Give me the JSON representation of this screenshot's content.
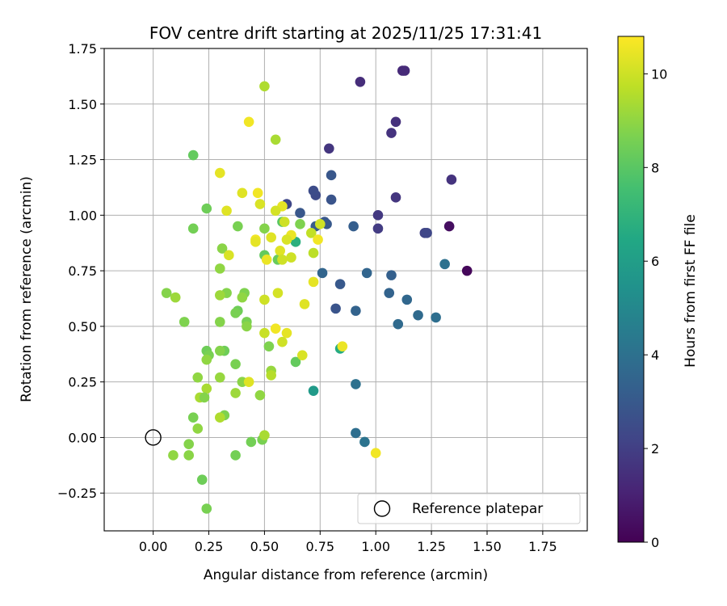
{
  "chart_data": {
    "type": "scatter",
    "title": "FOV centre drift starting at 2025/11/25 17:31:41",
    "xlabel": "Angular distance from reference (arcmin)",
    "ylabel": "Rotation from reference (arcmin)",
    "xlim": [
      -0.22,
      1.95
    ],
    "ylim": [
      -0.42,
      1.75
    ],
    "xticks": [
      "0.00",
      "0.25",
      "0.50",
      "0.75",
      "1.00",
      "1.25",
      "1.50",
      "1.75"
    ],
    "yticks": [
      "−0.25",
      "0.00",
      "0.25",
      "0.50",
      "0.75",
      "1.00",
      "1.25",
      "1.50",
      "1.75"
    ],
    "grid": true,
    "colorbar": {
      "label": "Hours from first FF file",
      "range": [
        0,
        10.8
      ],
      "ticks": [
        "0",
        "2",
        "4",
        "6",
        "8",
        "10"
      ],
      "colormap": "viridis"
    },
    "reference": {
      "x": 0.0,
      "y": 0.0,
      "label": "Reference platepar"
    },
    "legend": {
      "location": "lower-right",
      "entries": [
        "Reference platepar"
      ]
    },
    "points": [
      {
        "x": 1.41,
        "y": 0.75,
        "h": 0.2
      },
      {
        "x": 1.33,
        "y": 0.95,
        "h": 0.4
      },
      {
        "x": 1.12,
        "y": 1.65,
        "h": 1.3
      },
      {
        "x": 1.13,
        "y": 1.65,
        "h": 1.3
      },
      {
        "x": 0.93,
        "y": 1.6,
        "h": 1.4
      },
      {
        "x": 1.09,
        "y": 1.42,
        "h": 1.5
      },
      {
        "x": 1.07,
        "y": 1.37,
        "h": 1.6
      },
      {
        "x": 0.79,
        "y": 1.3,
        "h": 1.7
      },
      {
        "x": 1.34,
        "y": 1.16,
        "h": 1.6
      },
      {
        "x": 1.09,
        "y": 1.08,
        "h": 1.7
      },
      {
        "x": 1.01,
        "y": 1.0,
        "h": 1.8
      },
      {
        "x": 1.01,
        "y": 0.94,
        "h": 1.9
      },
      {
        "x": 1.22,
        "y": 0.92,
        "h": 2.2
      },
      {
        "x": 1.23,
        "y": 0.92,
        "h": 2.3
      },
      {
        "x": 0.6,
        "y": 1.05,
        "h": 2.3
      },
      {
        "x": 0.73,
        "y": 1.09,
        "h": 2.4
      },
      {
        "x": 0.72,
        "y": 1.11,
        "h": 2.5
      },
      {
        "x": 0.8,
        "y": 1.07,
        "h": 2.8
      },
      {
        "x": 0.8,
        "y": 1.18,
        "h": 2.9
      },
      {
        "x": 0.66,
        "y": 1.01,
        "h": 2.9
      },
      {
        "x": 0.77,
        "y": 0.97,
        "h": 2.9
      },
      {
        "x": 0.78,
        "y": 0.96,
        "h": 3.0
      },
      {
        "x": 0.73,
        "y": 0.95,
        "h": 3.1
      },
      {
        "x": 0.9,
        "y": 0.95,
        "h": 3.2
      },
      {
        "x": 0.84,
        "y": 0.69,
        "h": 3.0
      },
      {
        "x": 0.82,
        "y": 0.58,
        "h": 2.8
      },
      {
        "x": 1.06,
        "y": 0.65,
        "h": 3.4
      },
      {
        "x": 1.07,
        "y": 0.73,
        "h": 3.3
      },
      {
        "x": 0.96,
        "y": 0.74,
        "h": 3.5
      },
      {
        "x": 0.76,
        "y": 0.74,
        "h": 3.5
      },
      {
        "x": 0.91,
        "y": 0.57,
        "h": 3.4
      },
      {
        "x": 1.14,
        "y": 0.62,
        "h": 3.6
      },
      {
        "x": 1.1,
        "y": 0.51,
        "h": 3.7
      },
      {
        "x": 1.19,
        "y": 0.55,
        "h": 3.7
      },
      {
        "x": 1.27,
        "y": 0.54,
        "h": 3.9
      },
      {
        "x": 1.31,
        "y": 0.78,
        "h": 4.0
      },
      {
        "x": 0.91,
        "y": 0.24,
        "h": 4.0
      },
      {
        "x": 0.91,
        "y": 0.02,
        "h": 3.9
      },
      {
        "x": 0.95,
        "y": -0.02,
        "h": 4.1
      },
      {
        "x": 0.72,
        "y": 0.21,
        "h": 5.8
      },
      {
        "x": 0.84,
        "y": 0.4,
        "h": 6.6
      },
      {
        "x": 0.64,
        "y": 0.88,
        "h": 6.8
      },
      {
        "x": 0.64,
        "y": 0.34,
        "h": 8.2
      },
      {
        "x": 0.58,
        "y": 0.97,
        "h": 8.0
      },
      {
        "x": 0.66,
        "y": 0.96,
        "h": 8.7
      },
      {
        "x": 0.18,
        "y": 1.27,
        "h": 8.2
      },
      {
        "x": 0.24,
        "y": 1.03,
        "h": 8.4
      },
      {
        "x": 0.18,
        "y": 0.94,
        "h": 8.5
      },
      {
        "x": 0.38,
        "y": 0.95,
        "h": 8.6
      },
      {
        "x": 0.5,
        "y": 0.82,
        "h": 8.2
      },
      {
        "x": 0.56,
        "y": 0.8,
        "h": 8.3
      },
      {
        "x": 0.5,
        "y": 0.94,
        "h": 8.8
      },
      {
        "x": 0.31,
        "y": 0.85,
        "h": 8.9
      },
      {
        "x": 0.3,
        "y": 0.76,
        "h": 9.0
      },
      {
        "x": 0.33,
        "y": 0.65,
        "h": 8.8
      },
      {
        "x": 0.41,
        "y": 0.65,
        "h": 8.7
      },
      {
        "x": 0.4,
        "y": 0.63,
        "h": 9.0
      },
      {
        "x": 0.38,
        "y": 0.57,
        "h": 8.4
      },
      {
        "x": 0.37,
        "y": 0.56,
        "h": 8.6
      },
      {
        "x": 0.3,
        "y": 0.64,
        "h": 9.2
      },
      {
        "x": 0.42,
        "y": 0.52,
        "h": 8.6
      },
      {
        "x": 0.42,
        "y": 0.5,
        "h": 8.9
      },
      {
        "x": 0.3,
        "y": 0.52,
        "h": 8.8
      },
      {
        "x": 0.06,
        "y": 0.65,
        "h": 8.8
      },
      {
        "x": 0.1,
        "y": 0.63,
        "h": 9.2
      },
      {
        "x": 0.14,
        "y": 0.52,
        "h": 8.7
      },
      {
        "x": 0.24,
        "y": 0.39,
        "h": 8.4
      },
      {
        "x": 0.25,
        "y": 0.37,
        "h": 8.6
      },
      {
        "x": 0.32,
        "y": 0.39,
        "h": 8.4
      },
      {
        "x": 0.3,
        "y": 0.39,
        "h": 8.8
      },
      {
        "x": 0.37,
        "y": 0.33,
        "h": 8.6
      },
      {
        "x": 0.24,
        "y": 0.35,
        "h": 9.0
      },
      {
        "x": 0.2,
        "y": 0.27,
        "h": 9.0
      },
      {
        "x": 0.3,
        "y": 0.27,
        "h": 9.1
      },
      {
        "x": 0.4,
        "y": 0.25,
        "h": 8.9
      },
      {
        "x": 0.52,
        "y": 0.41,
        "h": 8.7
      },
      {
        "x": 0.53,
        "y": 0.3,
        "h": 9.1
      },
      {
        "x": 0.53,
        "y": 0.28,
        "h": 9.6
      },
      {
        "x": 0.24,
        "y": 0.22,
        "h": 9.4
      },
      {
        "x": 0.21,
        "y": 0.18,
        "h": 9.4
      },
      {
        "x": 0.23,
        "y": 0.18,
        "h": 8.8
      },
      {
        "x": 0.37,
        "y": 0.2,
        "h": 9.2
      },
      {
        "x": 0.48,
        "y": 0.19,
        "h": 9.0
      },
      {
        "x": 0.32,
        "y": 0.1,
        "h": 8.7
      },
      {
        "x": 0.3,
        "y": 0.09,
        "h": 9.5
      },
      {
        "x": 0.18,
        "y": 0.09,
        "h": 8.6
      },
      {
        "x": 0.2,
        "y": 0.04,
        "h": 9.0
      },
      {
        "x": 0.44,
        "y": -0.02,
        "h": 8.5
      },
      {
        "x": 0.49,
        "y": -0.01,
        "h": 8.6
      },
      {
        "x": 0.5,
        "y": 0.01,
        "h": 9.4
      },
      {
        "x": 0.16,
        "y": -0.03,
        "h": 8.8
      },
      {
        "x": 0.09,
        "y": -0.08,
        "h": 9.0
      },
      {
        "x": 0.16,
        "y": -0.08,
        "h": 8.9
      },
      {
        "x": 0.37,
        "y": -0.08,
        "h": 8.5
      },
      {
        "x": 0.22,
        "y": -0.19,
        "h": 8.4
      },
      {
        "x": 0.24,
        "y": -0.32,
        "h": 8.6
      },
      {
        "x": 0.5,
        "y": 1.58,
        "h": 9.5
      },
      {
        "x": 0.55,
        "y": 1.34,
        "h": 9.4
      },
      {
        "x": 0.43,
        "y": 1.42,
        "h": 10.6
      },
      {
        "x": 0.3,
        "y": 1.19,
        "h": 10.4
      },
      {
        "x": 0.4,
        "y": 1.1,
        "h": 10.3
      },
      {
        "x": 0.47,
        "y": 1.1,
        "h": 10.6
      },
      {
        "x": 0.48,
        "y": 1.05,
        "h": 10.2
      },
      {
        "x": 0.58,
        "y": 1.04,
        "h": 10.4
      },
      {
        "x": 0.55,
        "y": 1.02,
        "h": 10.1
      },
      {
        "x": 0.33,
        "y": 1.02,
        "h": 10.3
      },
      {
        "x": 0.59,
        "y": 0.97,
        "h": 10.0
      },
      {
        "x": 0.62,
        "y": 0.91,
        "h": 10.5
      },
      {
        "x": 0.6,
        "y": 0.89,
        "h": 10.2
      },
      {
        "x": 0.53,
        "y": 0.9,
        "h": 10.3
      },
      {
        "x": 0.71,
        "y": 0.92,
        "h": 9.8
      },
      {
        "x": 0.74,
        "y": 0.89,
        "h": 10.6
      },
      {
        "x": 0.46,
        "y": 0.89,
        "h": 10.6
      },
      {
        "x": 0.46,
        "y": 0.88,
        "h": 10.4
      },
      {
        "x": 0.75,
        "y": 0.96,
        "h": 10.0
      },
      {
        "x": 0.57,
        "y": 0.84,
        "h": 10.3
      },
      {
        "x": 0.72,
        "y": 0.83,
        "h": 9.7
      },
      {
        "x": 0.34,
        "y": 0.82,
        "h": 10.2
      },
      {
        "x": 0.58,
        "y": 0.8,
        "h": 10.0
      },
      {
        "x": 0.51,
        "y": 0.8,
        "h": 10.5
      },
      {
        "x": 0.62,
        "y": 0.81,
        "h": 10.0
      },
      {
        "x": 0.72,
        "y": 0.7,
        "h": 10.4
      },
      {
        "x": 0.56,
        "y": 0.65,
        "h": 10.1
      },
      {
        "x": 0.5,
        "y": 0.62,
        "h": 10.0
      },
      {
        "x": 0.68,
        "y": 0.6,
        "h": 10.3
      },
      {
        "x": 0.55,
        "y": 0.49,
        "h": 10.6
      },
      {
        "x": 0.6,
        "y": 0.47,
        "h": 10.4
      },
      {
        "x": 0.5,
        "y": 0.47,
        "h": 9.9
      },
      {
        "x": 0.58,
        "y": 0.43,
        "h": 10.0
      },
      {
        "x": 0.67,
        "y": 0.37,
        "h": 10.2
      },
      {
        "x": 0.85,
        "y": 0.41,
        "h": 10.5
      },
      {
        "x": 0.43,
        "y": 0.25,
        "h": 10.3
      },
      {
        "x": 1.0,
        "y": -0.07,
        "h": 10.6
      }
    ]
  }
}
